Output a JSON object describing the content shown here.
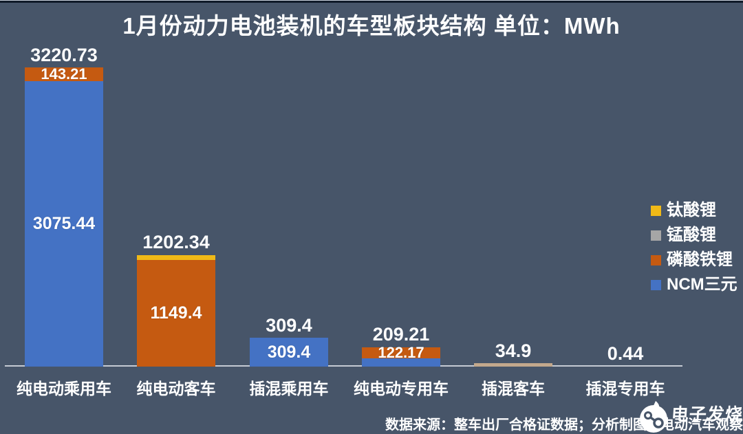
{
  "title": "1月份动力电池装机的车型板块结构 单位：MWh",
  "source_note": "数据来源：整车出厂合格证数据；分析制图：电动汽车观察家",
  "watermark": {
    "brand": "电子发烧友"
  },
  "colors": {
    "background": "#475569",
    "axis_line": "#C6CBD4",
    "text": "#FFFFFF",
    "ncm_blue": "#4472C4",
    "lfp_orange": "#C55A11",
    "lto_yellow": "#F0B917",
    "lmo_gray": "#A6A6A6",
    "thin_bar_tan": "#C3A88C"
  },
  "chart_data": {
    "type": "bar",
    "stacked": true,
    "unit": "MWh",
    "grid": false,
    "legend_position": "right",
    "ylim": [
      0,
      3220.73
    ],
    "categories": [
      "纯电动乘用车",
      "纯电动客车",
      "插混乘用车",
      "纯电动专用车",
      "插混客车",
      "插混专用车"
    ],
    "series_legend": [
      {
        "name": "钛酸锂",
        "color": "#F0B917"
      },
      {
        "name": "锰酸锂",
        "color": "#A6A6A6"
      },
      {
        "name": "磷酸铁锂",
        "color": "#C55A11"
      },
      {
        "name": "NCM三元",
        "color": "#4472C4"
      }
    ],
    "bars": [
      {
        "category": "纯电动乘用车",
        "total": 3220.73,
        "total_label": "3220.73",
        "segments": [
          {
            "series": "NCM三元",
            "value": 3075.44,
            "label": "3075.44",
            "color": "#4472C4"
          },
          {
            "series": "磷酸铁锂",
            "value": 143.21,
            "label": "143.21",
            "color": "#C55A11"
          }
        ]
      },
      {
        "category": "纯电动客车",
        "total": 1202.34,
        "total_label": "1202.34",
        "segments": [
          {
            "series": "磷酸铁锂",
            "value": 1149.4,
            "label": "1149.4",
            "color": "#C55A11"
          },
          {
            "series": "钛酸锂",
            "value": 52.94,
            "label": "",
            "color": "#F0B917"
          }
        ]
      },
      {
        "category": "插混乘用车",
        "total": 309.4,
        "total_label": "309.4",
        "segments": [
          {
            "series": "NCM三元",
            "value": 309.4,
            "label": "309.4",
            "color": "#4472C4"
          }
        ]
      },
      {
        "category": "纯电动专用车",
        "total": 209.21,
        "total_label": "209.21",
        "segments": [
          {
            "series": "NCM三元",
            "value": 87.04,
            "label": "",
            "color": "#4472C4"
          },
          {
            "series": "磷酸铁锂",
            "value": 122.17,
            "label": "122.17",
            "color": "#C55A11"
          }
        ]
      },
      {
        "category": "插混客车",
        "total": 34.9,
        "total_label": "34.9",
        "segments": [
          {
            "series": "",
            "value": 34.9,
            "label": "",
            "color": "#C3A88C"
          }
        ]
      },
      {
        "category": "插混专用车",
        "total": 0.44,
        "total_label": "0.44",
        "segments": []
      }
    ]
  }
}
